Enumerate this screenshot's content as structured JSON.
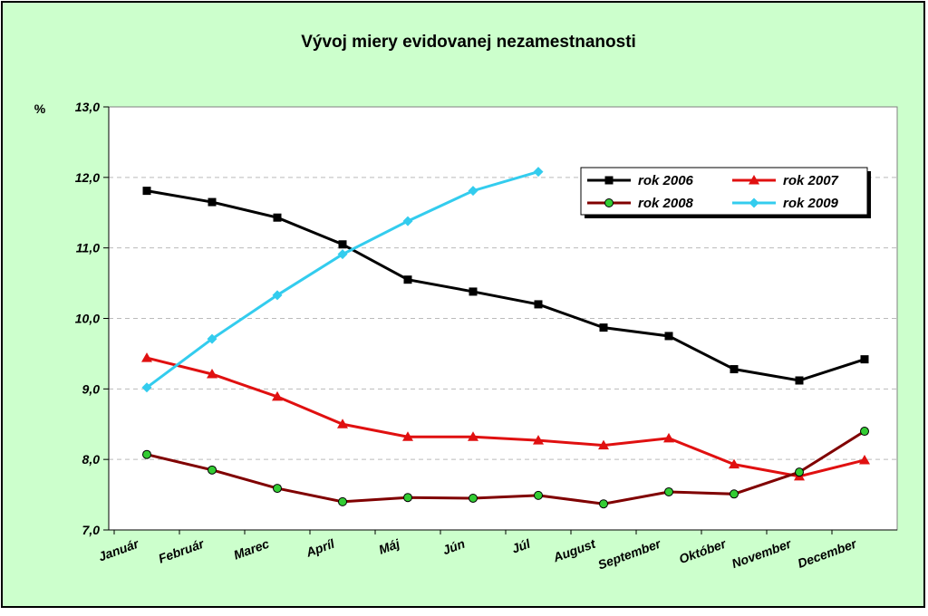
{
  "chart_data": {
    "type": "line",
    "title": "Vývoj miery evidovanej nezamestnanosti",
    "y_label": "%",
    "categories": [
      "Január",
      "Február",
      "Marec",
      "Apríl",
      "Máj",
      "Jún",
      "Júl",
      "August",
      "September",
      "Október",
      "November",
      "December"
    ],
    "series": [
      {
        "name": "rok 2006",
        "color": "#000000",
        "marker": "square",
        "values": [
          11.81,
          11.65,
          11.43,
          11.05,
          10.55,
          10.38,
          10.2,
          9.87,
          9.75,
          9.28,
          9.12,
          9.42
        ]
      },
      {
        "name": "rok 2007",
        "color": "#e01010",
        "marker": "triangle",
        "values": [
          9.44,
          9.21,
          8.89,
          8.5,
          8.32,
          8.32,
          8.27,
          8.2,
          8.3,
          7.93,
          7.76,
          7.99
        ]
      },
      {
        "name": "rok 2008",
        "color": "#800000",
        "marker": "circle",
        "values": [
          8.07,
          7.85,
          7.59,
          7.4,
          7.46,
          7.45,
          7.49,
          7.37,
          7.54,
          7.51,
          7.82,
          8.4
        ]
      },
      {
        "name": "rok 2009",
        "color": "#33ccee",
        "marker": "diamond",
        "values": [
          9.02,
          9.71,
          10.33,
          10.91,
          11.38,
          11.81,
          12.08,
          null,
          null,
          null,
          null,
          null
        ]
      }
    ],
    "ylim": [
      7,
      13
    ],
    "yticks": [
      {
        "value": 7,
        "label": "7,0"
      },
      {
        "value": 8,
        "label": "8,0"
      },
      {
        "value": 9,
        "label": "9,0"
      },
      {
        "value": 10,
        "label": "10,0"
      },
      {
        "value": 11,
        "label": "11,0"
      },
      {
        "value": 12,
        "label": "12,0"
      },
      {
        "value": 13,
        "label": "13,0"
      }
    ],
    "grid": true,
    "legend": "top-right"
  }
}
